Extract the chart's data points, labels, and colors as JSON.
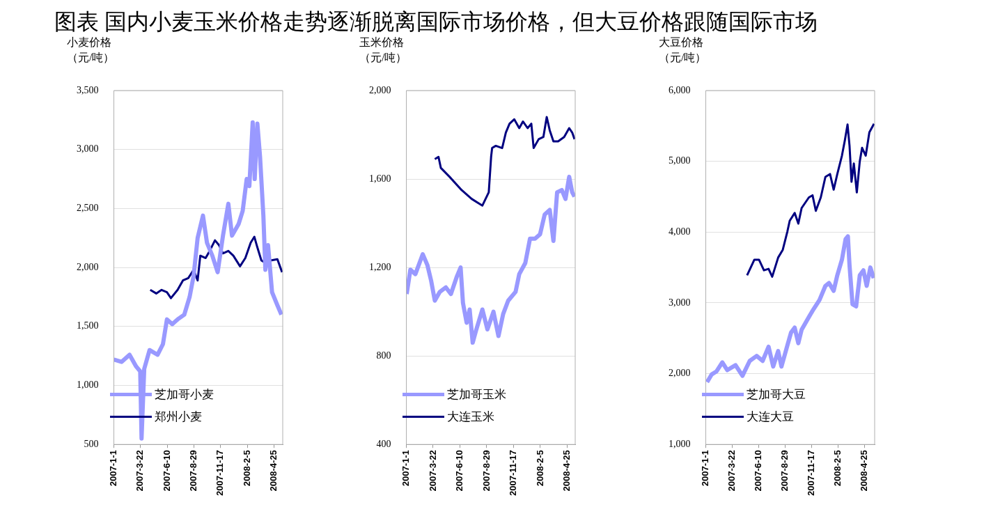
{
  "chart_data": [
    {
      "type": "line",
      "title": "图表  国内小麦玉米价格走势逐渐脱离国际市场价格，但大豆价格跟随国际市场",
      "ylabel": "小麦价格（元/吨）",
      "xlim": [
        "2007-01-01",
        "2008-05-21"
      ],
      "ylim": [
        500,
        3500
      ],
      "xticks": [
        {
          "value": "2007-01-01",
          "label": "2007-1-1"
        },
        {
          "value": "2007-03-22",
          "label": "2007-3-22"
        },
        {
          "value": "2007-06-10",
          "label": "2007-6-10"
        },
        {
          "value": "2007-08-29",
          "label": "2007-8-29"
        },
        {
          "value": "2007-11-17",
          "label": "2007-11-17"
        },
        {
          "value": "2008-02-05",
          "label": "2008-2-5"
        },
        {
          "value": "2008-04-25",
          "label": "2008-4-25"
        }
      ],
      "yticks": [
        {
          "value": 500,
          "label": "500"
        },
        {
          "value": 1000,
          "label": "1,000"
        },
        {
          "value": 1500,
          "label": "1,500"
        },
        {
          "value": 2000,
          "label": "2,000"
        },
        {
          "value": 2500,
          "label": "2,500"
        },
        {
          "value": 3000,
          "label": "3,000"
        },
        {
          "value": 3500,
          "label": "3,500"
        }
      ],
      "grid": "y",
      "legend": "bottom left",
      "marker": "none",
      "line_style": "solid",
      "series": [
        {
          "name": "芝加哥小麦",
          "color": "#9999ff",
          "x": [
            "2007-01-01",
            "2007-01-24",
            "2007-02-17",
            "2007-03-09",
            "2007-03-21",
            "2007-03-25",
            "2007-04-02",
            "2007-04-18",
            "2007-05-12",
            "2007-05-28",
            "2007-06-09",
            "2007-06-25",
            "2007-07-11",
            "2007-07-31",
            "2007-08-16",
            "2007-08-28",
            "2007-09-09",
            "2007-09-25",
            "2007-10-07",
            "2007-10-23",
            "2007-11-08",
            "2007-11-24",
            "2007-12-10",
            "2007-12-21",
            "2008-01-10",
            "2008-01-22",
            "2008-02-03",
            "2008-02-11",
            "2008-02-21",
            "2008-02-27",
            "2008-03-06",
            "2008-03-14",
            "2008-03-24",
            "2008-03-30",
            "2008-04-07",
            "2008-04-19",
            "2008-05-05",
            "2008-05-17"
          ],
          "values": [
            1220,
            1200,
            1260,
            1160,
            1120,
            550,
            1140,
            1300,
            1260,
            1350,
            1560,
            1520,
            1560,
            1600,
            1750,
            1930,
            2250,
            2440,
            2210,
            2100,
            1960,
            2270,
            2540,
            2270,
            2370,
            2480,
            2750,
            2690,
            3230,
            2750,
            3220,
            2940,
            2440,
            1980,
            2190,
            1790,
            1680,
            1600
          ]
        },
        {
          "name": "郑州小麦",
          "color": "#000080",
          "x": [
            "2007-04-20",
            "2007-05-08",
            "2007-05-24",
            "2007-06-09",
            "2007-06-21",
            "2007-07-11",
            "2007-07-27",
            "2007-08-12",
            "2007-08-28",
            "2007-09-09",
            "2007-09-17",
            "2007-10-03",
            "2007-10-15",
            "2007-10-31",
            "2007-11-12",
            "2007-11-24",
            "2007-12-10",
            "2007-12-25",
            "2008-01-14",
            "2008-01-30",
            "2008-02-15",
            "2008-02-26",
            "2008-03-06",
            "2008-03-18",
            "2008-03-30",
            "2008-04-15",
            "2008-05-05",
            "2008-05-19"
          ],
          "values": [
            1810,
            1780,
            1810,
            1790,
            1740,
            1810,
            1890,
            1910,
            1980,
            1890,
            2100,
            2080,
            2140,
            2230,
            2190,
            2120,
            2140,
            2100,
            2010,
            2080,
            2210,
            2260,
            2170,
            2060,
            2040,
            2060,
            2070,
            1960
          ]
        }
      ]
    },
    {
      "type": "line",
      "ylabel": "玉米价格（元/吨）",
      "xlim": [
        "2007-01-01",
        "2008-05-19"
      ],
      "ylim": [
        400,
        2000
      ],
      "xticks": [
        {
          "value": "2007-01-01",
          "label": "2007-1-1"
        },
        {
          "value": "2007-03-22",
          "label": "2007-3-22"
        },
        {
          "value": "2007-06-10",
          "label": "2007-6-10"
        },
        {
          "value": "2007-08-29",
          "label": "2007-8-29"
        },
        {
          "value": "2007-11-17",
          "label": "2007-11-17"
        },
        {
          "value": "2008-02-05",
          "label": "2008-2-5"
        },
        {
          "value": "2008-04-25",
          "label": "2008-4-25"
        }
      ],
      "yticks": [
        {
          "value": 400,
          "label": "400"
        },
        {
          "value": 800,
          "label": "800"
        },
        {
          "value": 1200,
          "label": "1,200"
        },
        {
          "value": 1600,
          "label": "1,600"
        },
        {
          "value": 2000,
          "label": "2,000"
        }
      ],
      "grid": "y",
      "legend": "bottom left",
      "marker": "none",
      "line_style": "solid",
      "series": [
        {
          "name": "芝加哥玉米",
          "color": "#9999ff",
          "x": [
            "2007-01-02",
            "2007-01-13",
            "2007-01-28",
            "2007-02-19",
            "2007-03-05",
            "2007-03-16",
            "2007-03-27",
            "2007-04-11",
            "2007-04-29",
            "2007-05-14",
            "2007-06-01",
            "2007-06-12",
            "2007-06-19",
            "2007-06-30",
            "2007-07-09",
            "2007-07-18",
            "2007-07-29",
            "2007-08-16",
            "2007-08-31",
            "2007-09-18",
            "2007-10-03",
            "2007-10-17",
            "2007-11-01",
            "2007-11-23",
            "2007-12-04",
            "2007-12-22",
            "2008-01-05",
            "2008-01-20",
            "2008-02-04",
            "2008-02-18",
            "2008-03-04",
            "2008-03-15",
            "2008-03-26",
            "2008-04-09",
            "2008-04-20",
            "2008-05-01",
            "2008-05-10",
            "2008-05-17"
          ],
          "values": [
            1080,
            1190,
            1170,
            1260,
            1210,
            1140,
            1050,
            1090,
            1110,
            1080,
            1160,
            1200,
            1040,
            950,
            1010,
            860,
            920,
            1010,
            920,
            1000,
            890,
            990,
            1050,
            1090,
            1170,
            1220,
            1330,
            1330,
            1350,
            1440,
            1460,
            1320,
            1540,
            1550,
            1510,
            1610,
            1540,
            1520
          ]
        },
        {
          "name": "大连玉米",
          "color": "#000080",
          "x": [
            "2007-03-27",
            "2007-04-07",
            "2007-04-14",
            "2007-05-10",
            "2007-06-15",
            "2007-07-15",
            "2007-08-05",
            "2007-08-16",
            "2007-09-04",
            "2007-09-11",
            "2007-09-14",
            "2007-09-25",
            "2007-10-14",
            "2007-10-25",
            "2007-11-05",
            "2007-11-19",
            "2007-12-04",
            "2007-12-15",
            "2007-12-29",
            "2008-01-09",
            "2008-01-16",
            "2008-01-31",
            "2008-02-14",
            "2008-02-24",
            "2008-03-04",
            "2008-03-15",
            "2008-03-29",
            "2008-04-16",
            "2008-05-01",
            "2008-05-10",
            "2008-05-17"
          ],
          "values": [
            1690,
            1700,
            1650,
            1610,
            1550,
            1510,
            1490,
            1480,
            1540,
            1700,
            1740,
            1750,
            1740,
            1810,
            1850,
            1870,
            1830,
            1860,
            1830,
            1850,
            1740,
            1780,
            1790,
            1880,
            1820,
            1770,
            1770,
            1790,
            1830,
            1810,
            1780
          ]
        }
      ]
    },
    {
      "type": "line",
      "ylabel": "大豆价格（元/吨）",
      "xlim": [
        "2007-01-01",
        "2008-05-26"
      ],
      "ylim": [
        1000,
        6000
      ],
      "xticks": [
        {
          "value": "2007-01-01",
          "label": "2007-1-1"
        },
        {
          "value": "2007-03-22",
          "label": "2007-3-22"
        },
        {
          "value": "2007-06-10",
          "label": "2007-6-10"
        },
        {
          "value": "2007-08-29",
          "label": "2007-8-29"
        },
        {
          "value": "2007-11-17",
          "label": "2007-11-17"
        },
        {
          "value": "2008-02-05",
          "label": "2008-2-5"
        },
        {
          "value": "2008-04-25",
          "label": "2008-4-25"
        }
      ],
      "yticks": [
        {
          "value": 1000,
          "label": "1,000"
        },
        {
          "value": 2000,
          "label": "2,000"
        },
        {
          "value": 3000,
          "label": "3,000"
        },
        {
          "value": 4000,
          "label": "4,000"
        },
        {
          "value": 5000,
          "label": "5,000"
        },
        {
          "value": 6000,
          "label": "6,000"
        }
      ],
      "grid": "y",
      "legend": "bottom left",
      "marker": "none",
      "line_style": "solid",
      "series": [
        {
          "name": "芝加哥大豆",
          "color": "#9999ff",
          "x": [
            "2007-01-05",
            "2007-01-19",
            "2007-02-02",
            "2007-02-20",
            "2007-03-07",
            "2007-04-01",
            "2007-04-22",
            "2007-05-14",
            "2007-06-04",
            "2007-06-22",
            "2007-07-10",
            "2007-07-24",
            "2007-08-08",
            "2007-08-18",
            "2007-09-05",
            "2007-09-16",
            "2007-09-27",
            "2007-10-08",
            "2007-10-18",
            "2007-11-09",
            "2007-11-23",
            "2007-12-11",
            "2007-12-29",
            "2008-01-09",
            "2008-01-23",
            "2008-02-03",
            "2008-02-17",
            "2008-02-28",
            "2008-03-06",
            "2008-03-11",
            "2008-03-20",
            "2008-03-31",
            "2008-04-11",
            "2008-04-22",
            "2008-05-02",
            "2008-05-13",
            "2008-05-23"
          ],
          "values": [
            1880,
            1990,
            2030,
            2160,
            2050,
            2120,
            1970,
            2180,
            2250,
            2180,
            2380,
            2100,
            2320,
            2100,
            2400,
            2580,
            2650,
            2430,
            2620,
            2800,
            2910,
            3040,
            3240,
            3280,
            3170,
            3390,
            3610,
            3900,
            3940,
            3530,
            2980,
            2950,
            3390,
            3460,
            3240,
            3500,
            3350
          ]
        },
        {
          "name": "大连大豆",
          "color": "#000080",
          "x": [
            "2007-05-06",
            "2007-05-28",
            "2007-06-11",
            "2007-06-26",
            "2007-07-10",
            "2007-07-21",
            "2007-08-08",
            "2007-08-22",
            "2007-09-05",
            "2007-09-12",
            "2007-09-27",
            "2007-10-08",
            "2007-10-18",
            "2007-11-09",
            "2007-11-20",
            "2007-11-30",
            "2007-12-15",
            "2007-12-29",
            "2008-01-12",
            "2008-01-23",
            "2008-02-03",
            "2008-02-17",
            "2008-02-26",
            "2008-03-05",
            "2008-03-11",
            "2008-03-17",
            "2008-03-24",
            "2008-04-02",
            "2008-04-11",
            "2008-04-18",
            "2008-04-29",
            "2008-05-10",
            "2008-05-24"
          ],
          "values": [
            3390,
            3610,
            3610,
            3460,
            3480,
            3370,
            3640,
            3750,
            4010,
            4160,
            4270,
            4120,
            4340,
            4490,
            4520,
            4300,
            4490,
            4780,
            4820,
            4600,
            4820,
            5080,
            5300,
            5520,
            5220,
            4710,
            4970,
            4560,
            5000,
            5190,
            5080,
            5410,
            5530
          ]
        }
      ]
    }
  ]
}
